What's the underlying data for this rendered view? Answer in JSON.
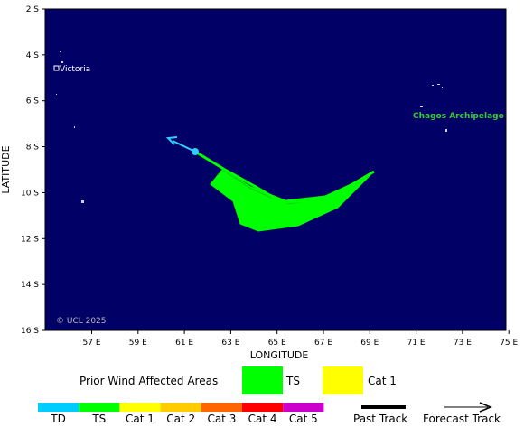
{
  "map": {
    "background_color": "#000066",
    "axis_x_title": "LONGITUDE",
    "axis_y_title": "LATITUDE",
    "lat_ticks": [
      "2 S",
      "4 S",
      "6 S",
      "8 S",
      "10 S",
      "12 S",
      "14 S",
      "16 S"
    ],
    "lon_ticks": [
      "57 E",
      "59 E",
      "61 E",
      "63 E",
      "65 E",
      "67 E",
      "69 E",
      "71 E",
      "73 E",
      "75 E"
    ],
    "credit": "© UCL 2025",
    "places": [
      {
        "name": "Victoria",
        "color": "#ffffff"
      },
      {
        "name": "Chagos Archipelago",
        "color": "#33cc33"
      }
    ],
    "wind_area_color": "#00ff00",
    "past_track_color": "#00ff00",
    "forecast_track_color": "#33ccff"
  },
  "legend": {
    "wind_areas_title": "Prior Wind Affected Areas",
    "wind_areas": [
      {
        "label": "TS",
        "color": "#00ff00"
      },
      {
        "label": "Cat 1",
        "color": "#ffff00"
      }
    ],
    "scale": [
      {
        "label": "TD",
        "color": "#00ccff"
      },
      {
        "label": "TS",
        "color": "#00ff00"
      },
      {
        "label": "Cat 1",
        "color": "#ffff00"
      },
      {
        "label": "Cat 2",
        "color": "#ffcc00"
      },
      {
        "label": "Cat 3",
        "color": "#ff6600"
      },
      {
        "label": "Cat 4",
        "color": "#ff0000"
      },
      {
        "label": "Cat 5",
        "color": "#cc00cc"
      }
    ],
    "past_track_label": "Past Track",
    "forecast_track_label": "Forecast Track"
  }
}
